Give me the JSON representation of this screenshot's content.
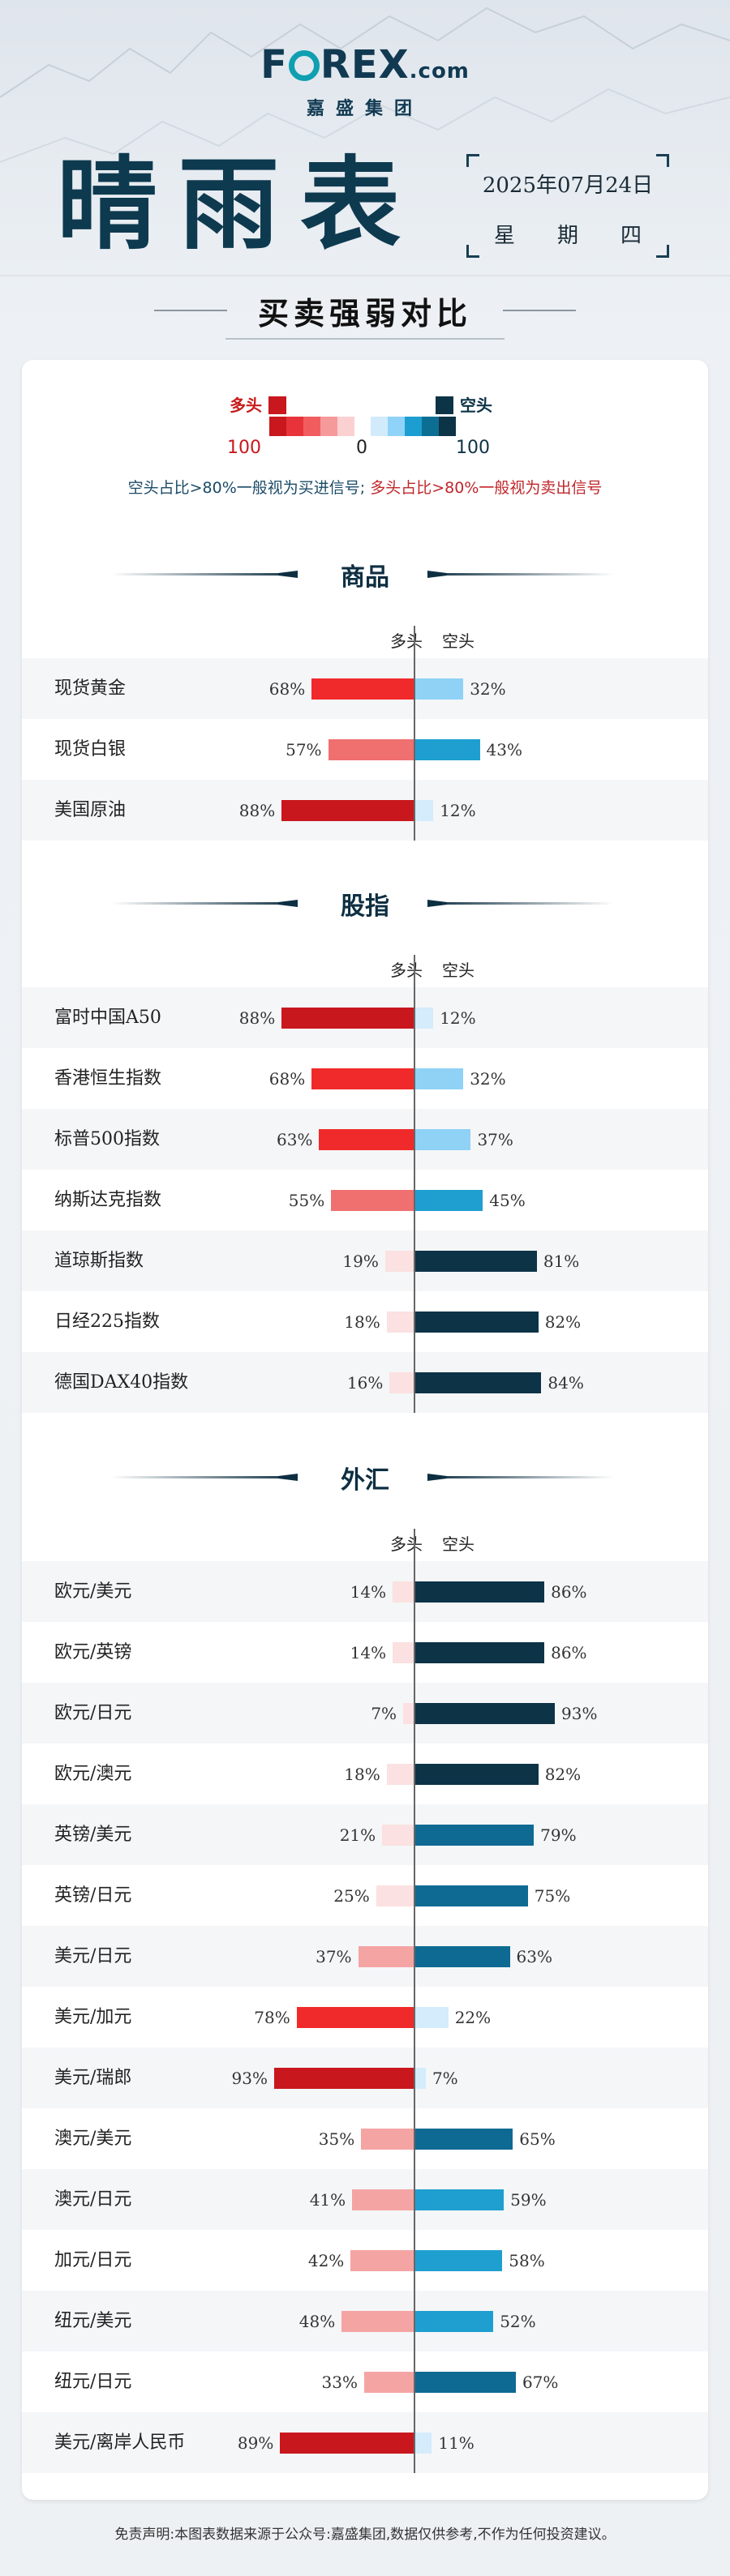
{
  "brand": {
    "logo_text_1": "F",
    "logo_text_2": "REX",
    "logo_suffix": ".com",
    "group_name": "嘉盛集团"
  },
  "title": "晴雨表",
  "date": "2025年07月24日",
  "weekday": [
    "星",
    "期",
    "四"
  ],
  "subtitle": "买卖强弱对比",
  "legend": {
    "long_label": "多头",
    "short_label": "空头",
    "long_value": "100",
    "zero": "0",
    "short_value": "100",
    "scale_colors": [
      "#c8171d",
      "#e8333a",
      "#f15d5f",
      "#f6999a",
      "#fbd0d1",
      "#ffffff",
      "#d2ebfb",
      "#8fd3f8",
      "#1c9fd0",
      "#0d6e94",
      "#0d3347"
    ]
  },
  "note": {
    "short_signal": "空头占比>80%一般视为买进信号;",
    "long_signal": "多头占比>80%一般视为卖出信号"
  },
  "column_headers": {
    "long": "多头",
    "short": "空头"
  },
  "sections": [
    {
      "title": "商品",
      "rows": [
        {
          "name": "现货黄金",
          "long": 68,
          "short": 32,
          "long_text": "68%",
          "short_text": "32%"
        },
        {
          "name": "现货白银",
          "long": 57,
          "short": 43,
          "long_text": "57%",
          "short_text": "43%"
        },
        {
          "name": "美国原油",
          "long": 88,
          "short": 12,
          "long_text": "88%",
          "short_text": "12%"
        }
      ]
    },
    {
      "title": "股指",
      "rows": [
        {
          "name": "富时中国A50",
          "long": 88,
          "short": 12,
          "long_text": "88%",
          "short_text": "12%"
        },
        {
          "name": "香港恒生指数",
          "long": 68,
          "short": 32,
          "long_text": "68%",
          "short_text": "32%"
        },
        {
          "name": "标普500指数",
          "long": 63,
          "short": 37,
          "long_text": "63%",
          "short_text": "37%"
        },
        {
          "name": "纳斯达克指数",
          "long": 55,
          "short": 45,
          "long_text": "55%",
          "short_text": "45%"
        },
        {
          "name": "道琼斯指数",
          "long": 19,
          "short": 81,
          "long_text": "19%",
          "short_text": "81%"
        },
        {
          "name": "日经225指数",
          "long": 18,
          "short": 82,
          "long_text": "18%",
          "short_text": "82%"
        },
        {
          "name": "德国DAX40指数",
          "long": 16,
          "short": 84,
          "long_text": "16%",
          "short_text": "84%"
        }
      ]
    },
    {
      "title": "外汇",
      "rows": [
        {
          "name": "欧元/美元",
          "long": 14,
          "short": 86,
          "long_text": "14%",
          "short_text": "86%"
        },
        {
          "name": "欧元/英镑",
          "long": 14,
          "short": 86,
          "long_text": "14%",
          "short_text": "86%"
        },
        {
          "name": "欧元/日元",
          "long": 7,
          "short": 93,
          "long_text": "7%",
          "short_text": "93%"
        },
        {
          "name": "欧元/澳元",
          "long": 18,
          "short": 82,
          "long_text": "18%",
          "short_text": "82%"
        },
        {
          "name": "英镑/美元",
          "long": 21,
          "short": 79,
          "long_text": "21%",
          "short_text": "79%"
        },
        {
          "name": "英镑/日元",
          "long": 25,
          "short": 75,
          "long_text": "25%",
          "short_text": "75%"
        },
        {
          "name": "美元/日元",
          "long": 37,
          "short": 63,
          "long_text": "37%",
          "short_text": "63%"
        },
        {
          "name": "美元/加元",
          "long": 78,
          "short": 22,
          "long_text": "78%",
          "short_text": "22%"
        },
        {
          "name": "美元/瑞郎",
          "long": 93,
          "short": 7,
          "long_text": "93%",
          "short_text": "7%"
        },
        {
          "name": "澳元/美元",
          "long": 35,
          "short": 65,
          "long_text": "35%",
          "short_text": "65%"
        },
        {
          "name": "澳元/日元",
          "long": 41,
          "short": 59,
          "long_text": "41%",
          "short_text": "59%"
        },
        {
          "name": "加元/日元",
          "long": 42,
          "short": 58,
          "long_text": "42%",
          "short_text": "58%"
        },
        {
          "name": "纽元/美元",
          "long": 48,
          "short": 52,
          "long_text": "48%",
          "short_text": "52%"
        },
        {
          "name": "纽元/日元",
          "long": 33,
          "short": 67,
          "long_text": "33%",
          "short_text": "67%"
        },
        {
          "name": "美元/离岸人民币",
          "long": 89,
          "short": 11,
          "long_text": "89%",
          "short_text": "11%"
        }
      ]
    }
  ],
  "footer": "免责声明:本图表数据来源于公众号:嘉盛集团,数据仅供参考,不作为任何投资建议。"
}
